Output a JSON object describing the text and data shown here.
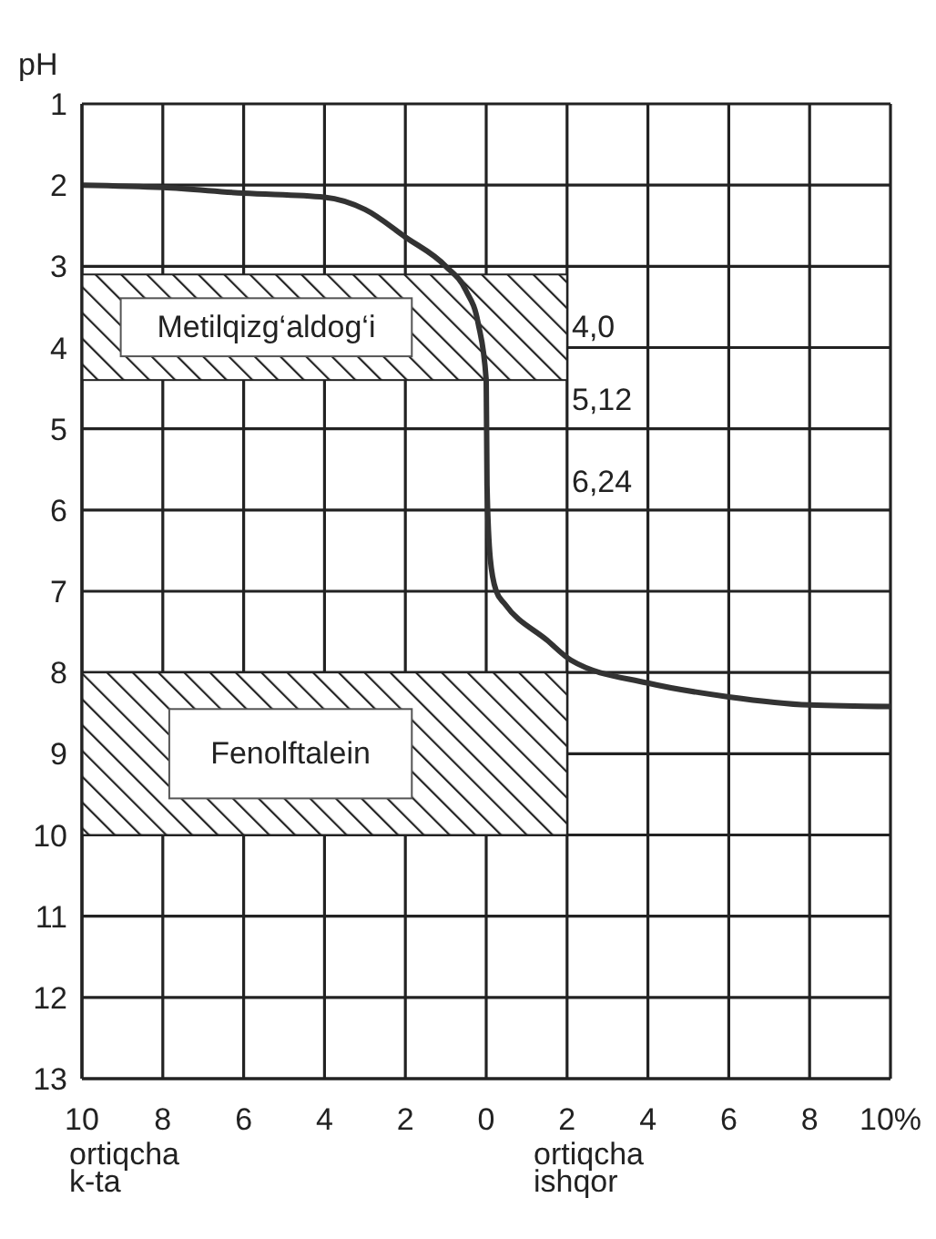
{
  "chart_data": {
    "type": "line",
    "ylabel": "pH",
    "x": [
      -10,
      -8,
      -6,
      -4,
      -3,
      -2,
      -1,
      -0.5,
      -0.2,
      0,
      0.02,
      0.1,
      0.25,
      0.45,
      1.5,
      2.1,
      4,
      6,
      8,
      10
    ],
    "series": [
      {
        "color": "#333333",
        "values": [
          2.0,
          2.03,
          2.1,
          2.15,
          2.3,
          2.64,
          3.0,
          3.3,
          3.7,
          4.4,
          5.7,
          6.6,
          7.0,
          7.15,
          7.6,
          7.85,
          8.13,
          8.3,
          8.4,
          8.42
        ]
      }
    ],
    "xlim": [
      -10,
      10
    ],
    "xticks": [
      {
        "value": -10,
        "label": "10"
      },
      {
        "value": -8,
        "label": "8"
      },
      {
        "value": -6,
        "label": "6"
      },
      {
        "value": -4,
        "label": "4"
      },
      {
        "value": -2,
        "label": "2"
      },
      0,
      2,
      4,
      6,
      8,
      {
        "value": 10,
        "label": "10%"
      }
    ],
    "ylim": [
      13,
      1
    ],
    "yticks": [
      1,
      2,
      3,
      4,
      5,
      6,
      7,
      8,
      9,
      10,
      11,
      12,
      13
    ],
    "grid": true,
    "marker": "none",
    "line_style": "solid",
    "bands": [
      {
        "axis": "y",
        "from": 3.1,
        "to": 4.4,
        "label": "Metilqizg‘aldog‘i",
        "color": "#222222"
      },
      {
        "axis": "y",
        "from": 8.0,
        "to": 10.0,
        "label": "Fenolftalein",
        "color": "#222222"
      }
    ],
    "annotations": [
      "4,0",
      "5,12",
      "6,24",
      "ortiqcha\nk-ta",
      "ortiqcha\nishqor"
    ]
  }
}
